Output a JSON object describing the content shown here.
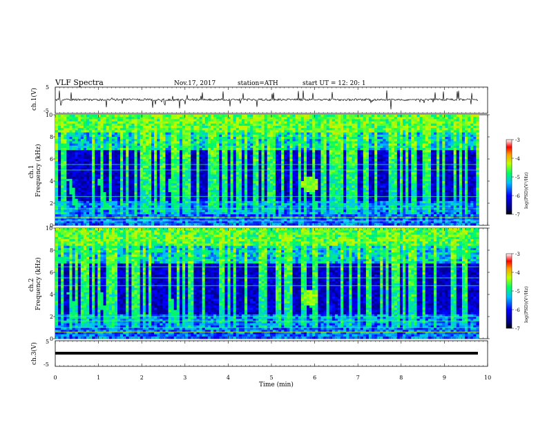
{
  "header": {
    "title": "VLF  Spectra",
    "date": "Nov.17, 2017",
    "station": "station=ATH",
    "start": "start  UT  =    12: 20: 1"
  },
  "chart_data": [
    {
      "type": "line",
      "name": "ch1-waveform",
      "ylabel": "ch.1(V)",
      "ylim": [
        -5,
        5
      ],
      "yticks": [
        "5",
        "-5"
      ],
      "xlim": [
        0,
        10
      ],
      "note_values": "noisy waveform centered near 0 V with sporadic spikes",
      "baseline_v": 0.2
    },
    {
      "type": "heatmap",
      "name": "ch1-spectrogram",
      "ylabel": "ch.1\nFrequency (kHz)",
      "ylabel_line1": "ch.1",
      "ylabel_line2": "Frequency  (kHz)",
      "ylim": [
        0,
        10
      ],
      "yticks": [
        "0",
        "2",
        "4",
        "6",
        "8",
        "10"
      ],
      "xlim": [
        0,
        9.8
      ],
      "features": {
        "blob_time_min": 5.85,
        "blob_freq_khz": 3.8,
        "whistler_times_min": [
          0.3,
          1.0,
          2.6,
          5.85
        ],
        "bright_lines_khz": [
          0.4,
          0.7,
          1.5,
          2.6,
          5.0,
          5.5
        ]
      }
    },
    {
      "type": "heatmap",
      "name": "ch2-spectrogram",
      "ylabel_line1": "ch.2",
      "ylabel_line2": "Frequency  (kHz)",
      "ylim": [
        0,
        10
      ],
      "yticks": [
        "0",
        "2",
        "4",
        "6",
        "8",
        "10"
      ],
      "xlim": [
        0,
        9.8
      ],
      "features": {
        "blob_time_min": 5.85,
        "blob_freq_khz": 3.8,
        "whistler_times_min": [
          0.3,
          1.0,
          2.6,
          5.85
        ],
        "bright_lines_khz": [
          0.6,
          1.0,
          1.6,
          2.0,
          4.8,
          5.5,
          6.5
        ]
      }
    },
    {
      "type": "line",
      "name": "ch3-waveform",
      "ylabel": "ch.3(V)",
      "ylim": [
        -5,
        5
      ],
      "yticks": [
        "5",
        "-5"
      ],
      "xlim": [
        0,
        10
      ],
      "value_v": -0.5
    }
  ],
  "xaxis": {
    "label": "Time  (min)",
    "ticks": [
      "0",
      "1",
      "2",
      "3",
      "4",
      "5",
      "6",
      "7",
      "8",
      "9",
      "10"
    ]
  },
  "colorbar": {
    "label": "log(PSD)(V²/Hz)",
    "ticks": [
      "-3",
      "-4",
      "-5",
      "-6",
      "-7"
    ],
    "range": [
      -7,
      -3
    ]
  },
  "colors": {
    "low": "#00007a",
    "mid": "#00ff40",
    "high": "#ff0000"
  }
}
